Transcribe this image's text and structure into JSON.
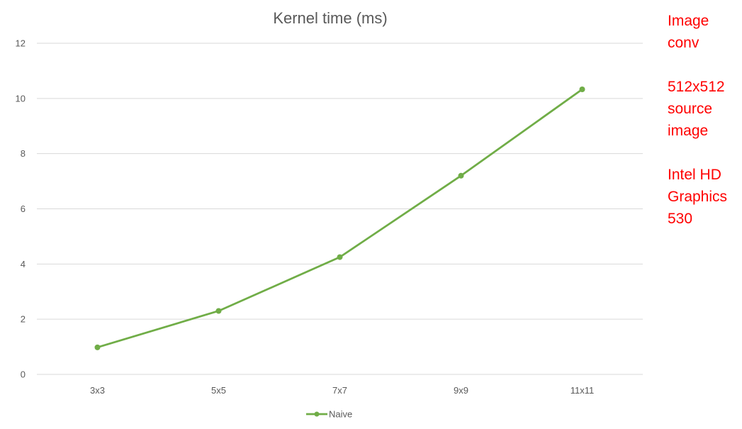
{
  "chart_data": {
    "type": "line",
    "title": "Kernel time (ms)",
    "categories": [
      "3x3",
      "5x5",
      "7x7",
      "9x9",
      "11x11"
    ],
    "series": [
      {
        "name": "Naive",
        "values": [
          0.98,
          2.3,
          4.25,
          7.2,
          10.33
        ],
        "color": "#70ad47"
      }
    ],
    "xlabel": "",
    "ylabel": "",
    "ylim": [
      0,
      12
    ],
    "yticks": [
      0,
      2,
      4,
      6,
      8,
      10,
      12
    ],
    "grid": "horizontal",
    "legend_position": "bottom",
    "gridline_color": "#d9d9d9",
    "text_color": "#595959"
  },
  "side_note": {
    "color": "#ff0000",
    "blocks": [
      "Image\nconv",
      "512x512\nsource\nimage",
      "Intel HD\nGraphics\n530"
    ]
  }
}
